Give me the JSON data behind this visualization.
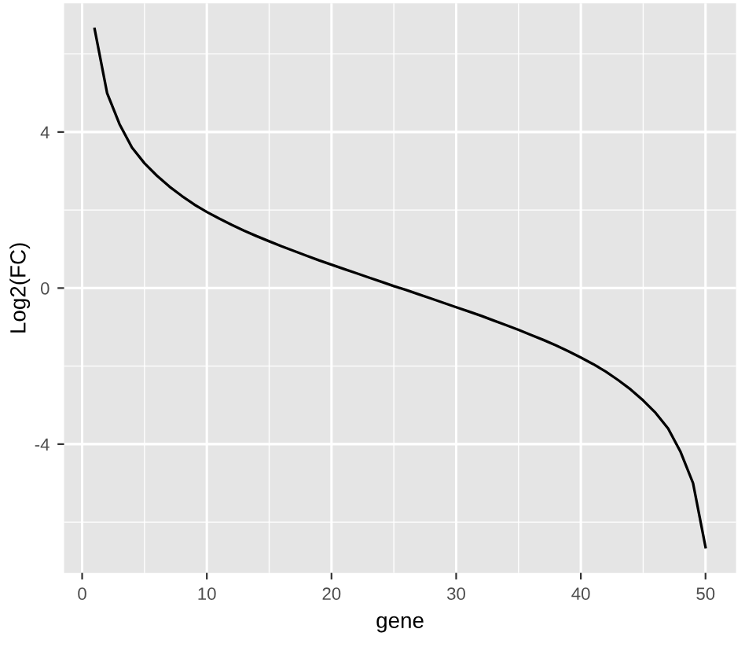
{
  "chart_data": {
    "type": "line",
    "xlabel": "gene",
    "ylabel": "Log2(FC)",
    "x": [
      1,
      2,
      3,
      4,
      5,
      6,
      7,
      8,
      9,
      10,
      11,
      12,
      13,
      14,
      15,
      16,
      17,
      18,
      19,
      20,
      21,
      22,
      23,
      24,
      25,
      26,
      27,
      28,
      29,
      30,
      31,
      32,
      33,
      34,
      35,
      36,
      37,
      38,
      39,
      40,
      41,
      42,
      43,
      44,
      45,
      46,
      47,
      48,
      49,
      50
    ],
    "series": [
      {
        "color": "#000000",
        "values": [
          6.64,
          5.0,
          4.2,
          3.6,
          3.2,
          2.88,
          2.6,
          2.36,
          2.14,
          1.95,
          1.78,
          1.62,
          1.47,
          1.33,
          1.2,
          1.07,
          0.95,
          0.83,
          0.71,
          0.6,
          0.49,
          0.38,
          0.27,
          0.16,
          0.05,
          -0.05,
          -0.16,
          -0.27,
          -0.38,
          -0.49,
          -0.6,
          -0.71,
          -0.83,
          -0.95,
          -1.07,
          -1.2,
          -1.33,
          -1.47,
          -1.62,
          -1.78,
          -1.95,
          -2.14,
          -2.36,
          -2.6,
          -2.88,
          -3.2,
          -3.6,
          -4.2,
          -5.0,
          -6.64
        ]
      }
    ],
    "xlim": [
      -1.45,
      52.45
    ],
    "ylim": [
      -7.3,
      7.3
    ],
    "xticks": [
      0,
      10,
      20,
      30,
      40,
      50
    ],
    "yticks": [
      {
        "value": -4,
        "label": "-4"
      },
      0,
      4
    ],
    "grid": true,
    "marker": "none",
    "line_style": "solid",
    "legend": false
  }
}
